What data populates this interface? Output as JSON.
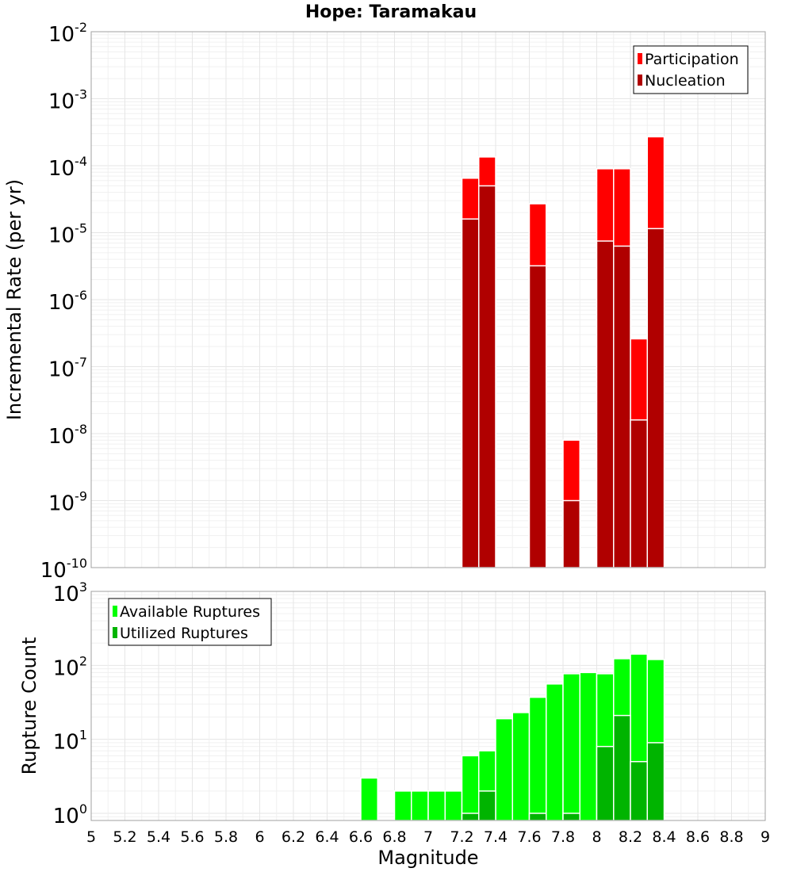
{
  "chart_data": [
    {
      "type": "bar",
      "title": "Hope: Taramakau",
      "xlabel": "",
      "ylabel": "Incremental Rate (per yr)",
      "y_scale": "log",
      "ylim": [
        1e-10,
        0.01
      ],
      "xlim": [
        5,
        9
      ],
      "bin_width": 0.1,
      "grid": true,
      "legend_position": "top-right",
      "y_ticks": [
        {
          "base": "10",
          "exp": "-10",
          "value": 1e-10
        },
        {
          "base": "10",
          "exp": "-9",
          "value": 1e-09
        },
        {
          "base": "10",
          "exp": "-8",
          "value": 1e-08
        },
        {
          "base": "10",
          "exp": "-7",
          "value": 1e-07
        },
        {
          "base": "10",
          "exp": "-6",
          "value": 1e-06
        },
        {
          "base": "10",
          "exp": "-5",
          "value": 1e-05
        },
        {
          "base": "10",
          "exp": "-4",
          "value": 0.0001
        },
        {
          "base": "10",
          "exp": "-3",
          "value": 0.001
        },
        {
          "base": "10",
          "exp": "-2",
          "value": 0.01
        }
      ],
      "series": [
        {
          "name": "Participation",
          "color": "#ff0000",
          "x": [
            7.25,
            7.35,
            7.65,
            7.85,
            8.05,
            8.15,
            8.25,
            8.35
          ],
          "values": [
            6.5e-05,
            0.000135,
            2.7e-05,
            8e-09,
            9e-05,
            9e-05,
            2.6e-07,
            0.00027
          ]
        },
        {
          "name": "Nucleation",
          "color": "#b00000",
          "x": [
            7.25,
            7.35,
            7.65,
            7.85,
            8.05,
            8.15,
            8.25,
            8.35
          ],
          "values": [
            1.6e-05,
            5e-05,
            3.2e-06,
            1e-09,
            7.5e-06,
            6.3e-06,
            1.6e-08,
            1.15e-05
          ]
        }
      ]
    },
    {
      "type": "bar",
      "title": "",
      "xlabel": "Magnitude",
      "ylabel": "Rupture Count",
      "y_scale": "log",
      "ylim": [
        0.8,
        1000
      ],
      "xlim": [
        5,
        9
      ],
      "bin_width": 0.1,
      "grid": true,
      "legend_position": "top-left",
      "x_ticks": [
        "5",
        "5.2",
        "5.4",
        "5.6",
        "5.8",
        "6",
        "6.2",
        "6.4",
        "6.6",
        "6.8",
        "7",
        "7.2",
        "7.4",
        "7.6",
        "7.8",
        "8",
        "8.2",
        "8.4",
        "8.6",
        "8.8",
        "9"
      ],
      "y_ticks": [
        {
          "base": "10",
          "exp": "0",
          "value": 1
        },
        {
          "base": "10",
          "exp": "1",
          "value": 10
        },
        {
          "base": "10",
          "exp": "2",
          "value": 100
        },
        {
          "base": "10",
          "exp": "3",
          "value": 1000
        }
      ],
      "series": [
        {
          "name": "Available Ruptures",
          "color": "#00ff00",
          "x": [
            6.65,
            6.85,
            6.95,
            7.05,
            7.15,
            7.25,
            7.35,
            7.45,
            7.55,
            7.65,
            7.75,
            7.85,
            7.95,
            8.05,
            8.15,
            8.25,
            8.35
          ],
          "values": [
            3,
            2,
            2,
            2,
            2,
            6,
            7,
            19,
            23,
            37,
            56,
            77,
            80,
            77,
            123,
            142,
            120
          ]
        },
        {
          "name": "Utilized Ruptures",
          "color": "#00b400",
          "x": [
            7.25,
            7.35,
            7.65,
            7.85,
            8.05,
            8.15,
            8.25,
            8.35
          ],
          "values": [
            1,
            2,
            1,
            1,
            8,
            21,
            5,
            9
          ]
        }
      ]
    }
  ]
}
